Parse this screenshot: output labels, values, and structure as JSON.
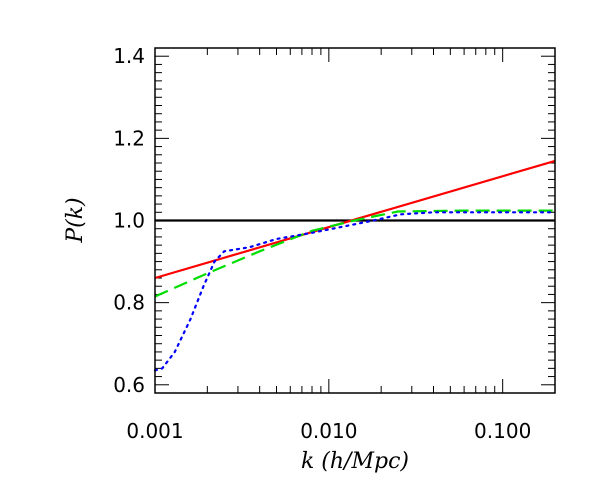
{
  "chart_data": {
    "type": "line",
    "title": "",
    "xlabel": "k (h/Mpc)",
    "ylabel": "P(k)",
    "xscale": "log",
    "xlim": [
      0.001,
      0.2
    ],
    "ylim": [
      0.58,
      1.42
    ],
    "grid": false,
    "xticks": [
      {
        "value": 0.001,
        "label": "0.001"
      },
      {
        "value": 0.01,
        "label": "0.010"
      },
      {
        "value": 0.1,
        "label": "0.100"
      }
    ],
    "yticks": [
      {
        "value": 0.6,
        "label": "0.6"
      },
      {
        "value": 0.8,
        "label": "0.8"
      },
      {
        "value": 1.0,
        "label": "1.0"
      },
      {
        "value": 1.2,
        "label": "1.2"
      },
      {
        "value": 1.4,
        "label": "1.4"
      }
    ],
    "series": [
      {
        "style": "solid",
        "color": "#000000",
        "x": [
          0.001,
          0.2
        ],
        "y": [
          1.0,
          1.0
        ]
      },
      {
        "style": "solid",
        "color": "#ff0000",
        "x": [
          0.001,
          0.2
        ],
        "y": [
          0.86,
          1.145
        ]
      },
      {
        "style": "dashed",
        "color": "#00dd00",
        "x": [
          0.001,
          0.0021,
          0.004,
          0.008,
          0.014,
          0.025,
          0.06,
          0.2
        ],
        "y": [
          0.815,
          0.875,
          0.925,
          0.975,
          1.0,
          1.022,
          1.024,
          1.024
        ]
      },
      {
        "style": "dotted",
        "color": "#0000ff",
        "x": [
          0.001,
          0.0011,
          0.0013,
          0.0016,
          0.0019,
          0.0022,
          0.0025,
          0.0035,
          0.005,
          0.008,
          0.012,
          0.018,
          0.026,
          0.04,
          0.08,
          0.2
        ],
        "y": [
          0.635,
          0.64,
          0.68,
          0.76,
          0.84,
          0.9,
          0.925,
          0.935,
          0.955,
          0.97,
          0.985,
          1.0,
          1.015,
          1.02,
          1.02,
          1.02
        ]
      }
    ]
  }
}
